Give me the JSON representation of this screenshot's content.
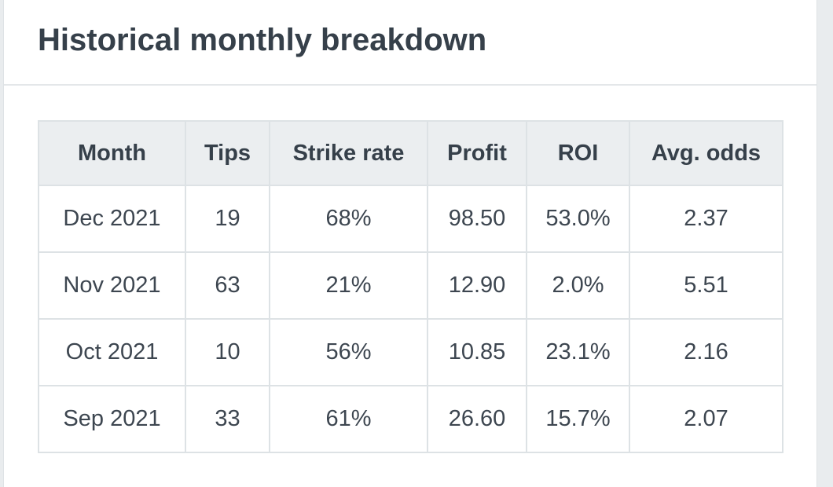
{
  "panel": {
    "title": "Historical monthly breakdown"
  },
  "table": {
    "headers": [
      "Month",
      "Tips",
      "Strike rate",
      "Profit",
      "ROI",
      "Avg. odds"
    ],
    "rows": [
      [
        "Dec 2021",
        "19",
        "68%",
        "98.50",
        "53.0%",
        "2.37"
      ],
      [
        "Nov 2021",
        "63",
        "21%",
        "12.90",
        "2.0%",
        "5.51"
      ],
      [
        "Oct 2021",
        "10",
        "56%",
        "10.85",
        "23.1%",
        "2.16"
      ],
      [
        "Sep 2021",
        "33",
        "61%",
        "26.60",
        "15.7%",
        "2.07"
      ]
    ]
  },
  "colors": {
    "title_text": "#36404a",
    "header_background": "#ebeef0",
    "border": "#dde2e5",
    "page_background": "#e9ecee"
  }
}
